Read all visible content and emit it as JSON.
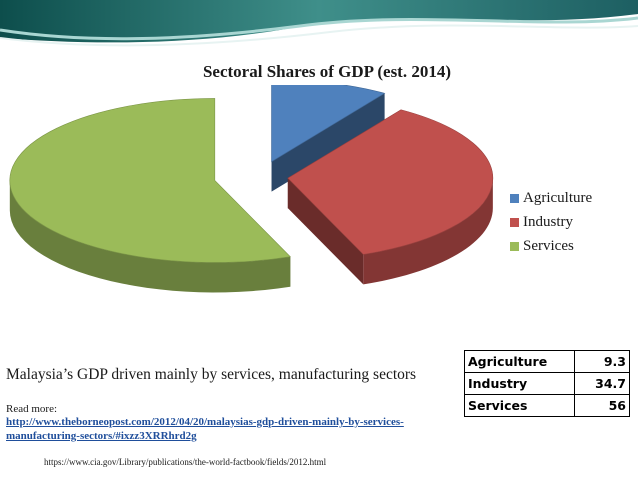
{
  "chart_data": {
    "type": "pie",
    "title": "Sectoral Shares of GDP (est. 2014)",
    "categories": [
      "Agriculture",
      "Industry",
      "Services"
    ],
    "values": [
      9.3,
      34.7,
      56
    ],
    "colors": [
      "#4f81bd",
      "#c0504d",
      "#9bbb59"
    ],
    "legend_position": "right"
  },
  "table": {
    "rows": [
      {
        "label": "Agriculture",
        "value": "9.3"
      },
      {
        "label": "Industry",
        "value": "34.7"
      },
      {
        "label": "Services",
        "value": "56"
      }
    ]
  },
  "caption": "Malaysia’s GDP driven mainly by services, manufacturing sectors",
  "read_more_label": "Read more:",
  "source_link": "http://www.theborneopost.com/2012/04/20/malaysias-gdp-driven-mainly-by-services-manufacturing-sectors/#ixzz3XRRhrd2g",
  "footnote": "https://www.cia.gov/Library/publications/the-world-factbook/fields/2012.html"
}
